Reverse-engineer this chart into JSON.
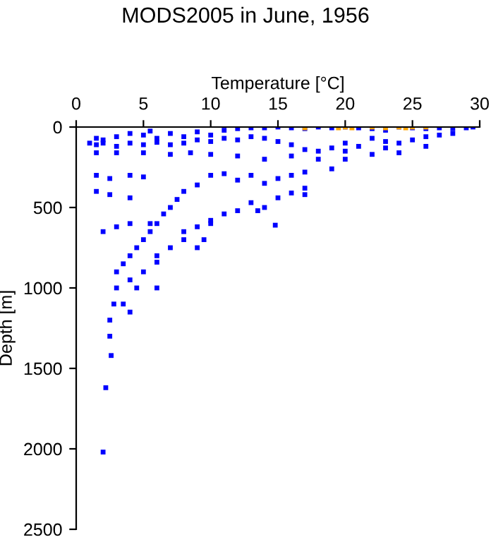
{
  "chart_data": {
    "type": "scatter",
    "title": "MODS2005 in June, 1956",
    "xlabel": "Temperature [°C]",
    "ylabel": "Depth [m]",
    "xlim": [
      0,
      30
    ],
    "xticks": [
      0,
      5,
      10,
      15,
      20,
      25,
      30
    ],
    "ylim": [
      2500,
      0
    ],
    "yticks": [
      0,
      500,
      1000,
      1500,
      2000,
      2500
    ],
    "marker": "square",
    "grid": false,
    "legend": false,
    "series": [
      {
        "color": "#0000ff",
        "x": [
          1.5,
          2,
          3,
          4,
          5,
          5.5,
          6,
          7,
          8,
          9,
          10,
          11,
          12,
          13,
          14,
          15,
          16,
          17,
          18,
          19,
          20,
          21,
          22,
          23,
          24,
          25,
          26,
          27,
          28,
          29,
          29.5,
          28,
          27,
          26,
          25,
          24,
          23,
          22,
          21,
          20,
          19,
          18,
          17,
          16,
          15,
          14,
          13,
          12,
          11,
          10,
          9,
          8,
          7,
          6,
          5,
          4,
          3,
          2,
          1.5,
          1.5,
          3,
          5,
          7,
          8.5,
          10,
          12,
          14,
          16,
          18,
          20,
          22,
          24,
          19,
          17,
          16,
          15,
          14,
          13,
          12,
          11,
          10,
          9,
          8,
          7.5,
          7,
          6.5,
          6,
          5.5,
          5,
          4.5,
          4,
          3.5,
          3,
          3,
          2.8,
          2.5,
          2.5,
          2.6,
          2.2,
          2,
          1.5,
          2.5,
          4,
          5,
          1.5,
          2.5,
          4,
          2,
          3,
          4,
          5.5,
          17,
          15,
          13,
          12,
          11,
          10,
          9,
          8,
          10,
          9.5,
          8,
          7,
          6,
          5,
          4,
          4.5,
          3.5,
          4,
          6,
          17,
          16,
          14,
          13.5,
          14.8,
          9,
          6,
          1,
          20,
          23,
          26
        ],
        "values": [
          70,
          80,
          60,
          40,
          50,
          25,
          70,
          40,
          60,
          30,
          50,
          20,
          10,
          5,
          5,
          0,
          5,
          10,
          0,
          5,
          0,
          5,
          10,
          20,
          0,
          5,
          10,
          5,
          10,
          5,
          0,
          40,
          50,
          60,
          80,
          100,
          90,
          70,
          120,
          100,
          130,
          150,
          140,
          110,
          90,
          70,
          60,
          80,
          70,
          90,
          80,
          100,
          110,
          95,
          110,
          100,
          120,
          100,
          110,
          160,
          160,
          160,
          170,
          160,
          170,
          180,
          200,
          180,
          200,
          200,
          170,
          160,
          260,
          280,
          300,
          320,
          350,
          300,
          330,
          290,
          300,
          360,
          400,
          450,
          500,
          540,
          600,
          650,
          700,
          750,
          800,
          850,
          900,
          1000,
          1100,
          1200,
          1300,
          1420,
          1620,
          2020,
          300,
          320,
          300,
          310,
          400,
          420,
          440,
          650,
          620,
          600,
          600,
          420,
          440,
          470,
          520,
          540,
          580,
          620,
          650,
          600,
          700,
          700,
          750,
          800,
          900,
          950,
          1000,
          1100,
          1150,
          1000,
          380,
          410,
          500,
          520,
          610,
          750,
          840,
          100,
          150,
          130,
          120
        ]
      },
      {
        "color": "#ffa500",
        "x": [
          17,
          19.5,
          20,
          20.5,
          22,
          23,
          24,
          24.5,
          25,
          26
        ],
        "values": [
          5,
          5,
          0,
          5,
          0,
          5,
          0,
          5,
          0,
          0
        ]
      }
    ]
  }
}
